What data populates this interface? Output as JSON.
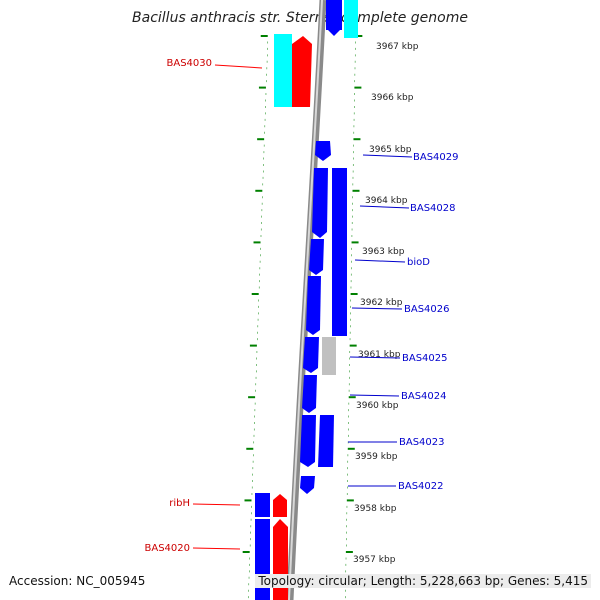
{
  "title": "Bacillus anthracis str. Sterne, complete genome",
  "footer": {
    "accession": "Accession: NC_005945",
    "summary": "Topology: circular; Length: 5,228,663 bp; Genes: 5,415"
  },
  "colors": {
    "forward_gene": "#ff0000",
    "reverse_gene": "#0000ff",
    "highlight_gene": "#00ffff",
    "other_gene": "#c0c0c0",
    "ticks": "#008000",
    "backbone": "#8a8a8a"
  },
  "kbp_labels": [
    "3967 kbp",
    "3966 kbp",
    "3965 kbp",
    "3964 kbp",
    "3963 kbp",
    "3962 kbp",
    "3961 kbp",
    "3960 kbp",
    "3959 kbp",
    "3958 kbp",
    "3957 kbp"
  ],
  "gene_labels": {
    "left": [
      "BAS4030",
      "ribH",
      "BAS4020"
    ],
    "right": [
      "BAS4029",
      "BAS4028",
      "bioD",
      "BAS4026",
      "BAS4025",
      "BAS4024",
      "BAS4023",
      "BAS4022"
    ]
  }
}
